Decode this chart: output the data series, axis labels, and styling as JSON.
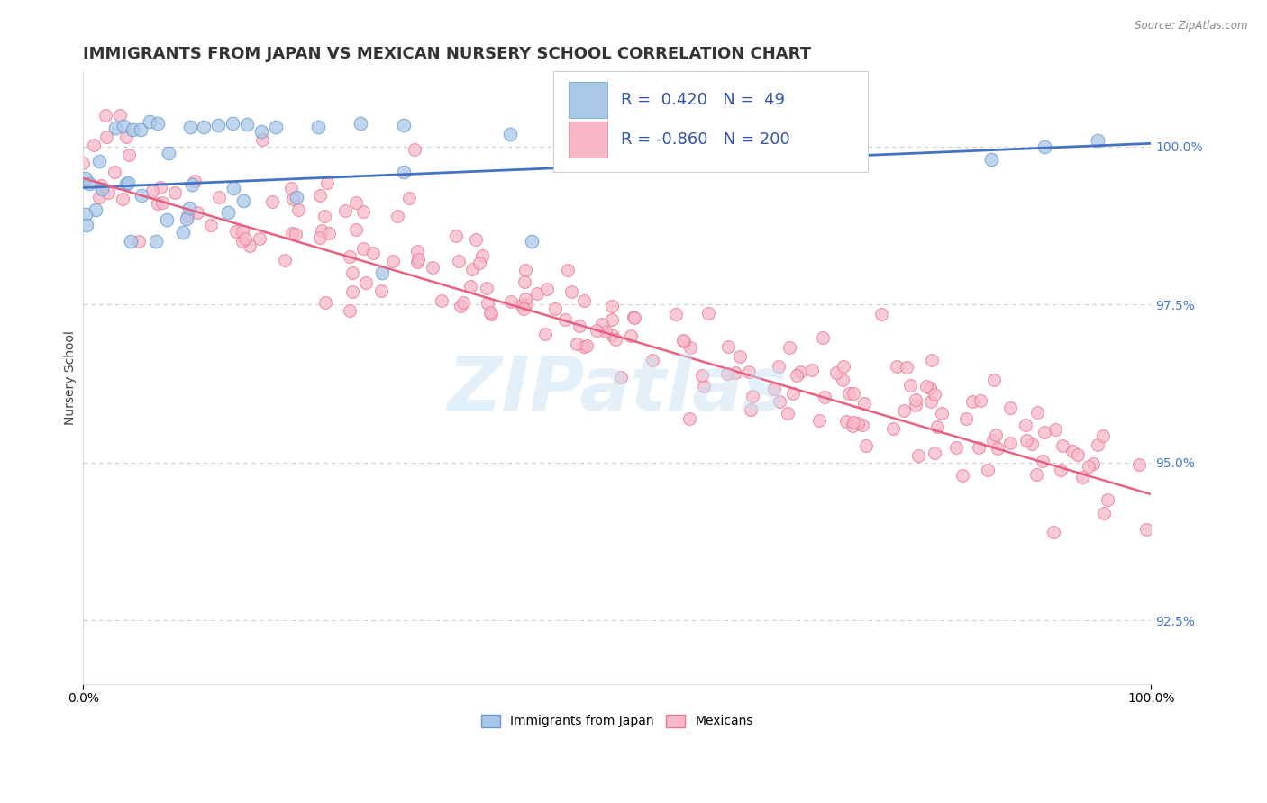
{
  "title": "IMMIGRANTS FROM JAPAN VS MEXICAN NURSERY SCHOOL CORRELATION CHART",
  "source_text": "Source: ZipAtlas.com",
  "ylabel": "Nursery School",
  "xlim": [
    0.0,
    100.0
  ],
  "ylim": [
    91.5,
    101.2
  ],
  "ytick_labels": [
    "92.5%",
    "95.0%",
    "97.5%",
    "100.0%"
  ],
  "ytick_values": [
    92.5,
    95.0,
    97.5,
    100.0
  ],
  "japan_R": 0.42,
  "japan_N": 49,
  "mexico_R": -0.86,
  "mexico_N": 200,
  "japan_color": "#A8C8E8",
  "japan_edge_color": "#6699CC",
  "mexico_color": "#F8B8C8",
  "mexico_edge_color": "#E87898",
  "japan_line_color": "#4472C4",
  "mexico_line_color": "#E86080",
  "watermark": "ZIPatlas",
  "background_color": "#FFFFFF",
  "grid_color": "#CCCCCC",
  "title_fontsize": 13,
  "axis_label_fontsize": 10,
  "tick_fontsize": 10,
  "legend_fontsize": 13,
  "right_tick_color": "#4477CC"
}
